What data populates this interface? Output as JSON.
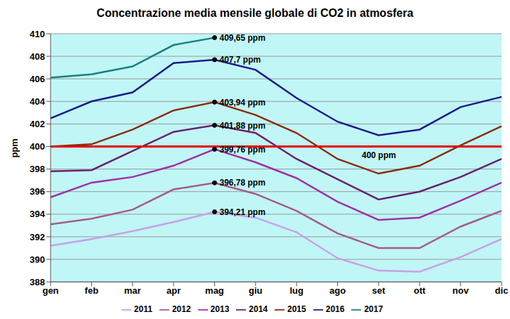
{
  "chart_data": {
    "type": "line",
    "title": "Concentrazione media mensile globale di CO2 in atmosfera",
    "y_label": "ppm",
    "categories": [
      "gen",
      "feb",
      "mar",
      "apr",
      "mag",
      "giu",
      "lug",
      "ago",
      "set",
      "ott",
      "nov",
      "dic"
    ],
    "series": [
      {
        "name": "2011",
        "color": "#c9a0e6",
        "values": [
          391.2,
          391.8,
          392.5,
          393.3,
          394.21,
          393.7,
          392.4,
          390.1,
          389.0,
          388.9,
          390.2,
          391.8
        ]
      },
      {
        "name": "2012",
        "color": "#a85a88",
        "values": [
          393.1,
          393.6,
          394.4,
          396.2,
          396.78,
          395.8,
          394.3,
          392.3,
          391.0,
          391.0,
          392.9,
          394.3
        ]
      },
      {
        "name": "2013",
        "color": "#a030a8",
        "values": [
          395.5,
          396.8,
          397.3,
          398.3,
          399.76,
          398.6,
          397.2,
          395.1,
          393.5,
          393.7,
          395.2,
          396.8
        ]
      },
      {
        "name": "2014",
        "color": "#6a206e",
        "values": [
          397.8,
          397.9,
          399.6,
          401.3,
          401.88,
          401.2,
          398.9,
          397.1,
          395.3,
          396.0,
          397.3,
          398.9
        ]
      },
      {
        "name": "2015",
        "color": "#8a2c0c",
        "values": [
          400.0,
          400.2,
          401.5,
          403.2,
          403.94,
          402.8,
          401.2,
          398.9,
          397.6,
          398.3,
          400.1,
          401.8
        ]
      },
      {
        "name": "2016",
        "color": "#1a1a8a",
        "values": [
          402.5,
          404.0,
          404.8,
          407.4,
          407.7,
          406.8,
          404.3,
          402.2,
          401.0,
          401.5,
          403.5,
          404.4
        ]
      },
      {
        "name": "2017",
        "color": "#1a8080",
        "values": [
          406.1,
          406.4,
          407.1,
          409.0,
          409.65,
          null,
          null,
          null,
          null,
          null,
          null,
          null
        ]
      }
    ],
    "ylim": [
      388,
      410
    ],
    "yticks": [
      388,
      390,
      392,
      394,
      396,
      398,
      400,
      402,
      404,
      406,
      408,
      410
    ],
    "grid": true,
    "legend": "bottom",
    "reference_line": {
      "y": 400,
      "label": "400 ppm",
      "color": "#e00000"
    },
    "annotations": [
      {
        "x": "mag",
        "y": 409.65,
        "text": "409,65 ppm"
      },
      {
        "x": "mag",
        "y": 407.7,
        "text": "407,7 ppm"
      },
      {
        "x": "mag",
        "y": 403.94,
        "text": "403,94 ppm"
      },
      {
        "x": "mag",
        "y": 401.88,
        "text": "401,88 ppm"
      },
      {
        "x": "mag",
        "y": 399.76,
        "text": "399,76 ppm"
      },
      {
        "x": "mag",
        "y": 396.78,
        "text": "396,78 ppm"
      },
      {
        "x": "mag",
        "y": 394.21,
        "text": "394,21 ppm"
      }
    ]
  }
}
